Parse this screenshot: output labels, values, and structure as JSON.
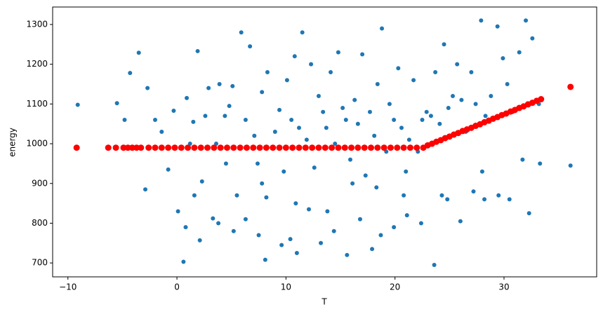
{
  "chart_data": {
    "type": "scatter",
    "xlabel": "T",
    "ylabel": "energy",
    "xlim": [
      -11.4,
      38.5
    ],
    "ylim": [
      665,
      1344
    ],
    "xticks": [
      {
        "value": -10,
        "label": "−10"
      },
      0,
      10,
      20,
      30
    ],
    "yticks": [
      700,
      800,
      900,
      1000,
      1100,
      1200,
      1300
    ],
    "series": [
      {
        "color": "#1f77b4",
        "size": 3,
        "x": [
          -9.1,
          -5.5,
          -4.8,
          -4.3,
          -3.5,
          -2.9,
          -2.7,
          -2.0,
          -1.4,
          -0.8,
          -0.3,
          0.1,
          0.6,
          0.9,
          1.2,
          1.5,
          1.9,
          2.3,
          2.6,
          2.9,
          3.3,
          3.6,
          3.9,
          4.4,
          4.8,
          5.1,
          5.5,
          5.9,
          6.3,
          6.7,
          7.1,
          7.4,
          7.8,
          8.1,
          8.3,
          8.7,
          9.0,
          9.4,
          9.8,
          10.1,
          10.5,
          10.8,
          11.2,
          11.5,
          11.9,
          12.3,
          12.6,
          13.0,
          13.4,
          13.7,
          14.1,
          14.5,
          14.8,
          15.2,
          15.5,
          15.9,
          16.3,
          16.6,
          17.0,
          17.3,
          17.7,
          18.1,
          18.4,
          18.8,
          19.2,
          19.5,
          19.9,
          20.3,
          20.6,
          21.0,
          21.3,
          21.7,
          22.1,
          22.5,
          22.9,
          23.3,
          23.7,
          24.1,
          24.5,
          24.9,
          25.3,
          25.7,
          26.1,
          26.5,
          27.0,
          27.4,
          27.9,
          28.3,
          28.8,
          29.4,
          29.9,
          30.3,
          30.8,
          31.4,
          32.0,
          32.6,
          33.2,
          36.1,
          0.8,
          2.1,
          3.8,
          5.2,
          6.3,
          7.5,
          8.2,
          9.6,
          10.4,
          11.0,
          12.1,
          13.2,
          14.4,
          15.6,
          16.8,
          17.9,
          18.7,
          19.9,
          21.1,
          22.4,
          23.6,
          24.8,
          26.0,
          27.2,
          28.2,
          29.5,
          30.5,
          32.3,
          33.3,
          1.6,
          4.5,
          7.8,
          10.9,
          13.8,
          16.1,
          18.3,
          20.8,
          24.3,
          28.0,
          31.7
        ],
        "values": [
          1098,
          1102,
          1060,
          1178,
          1229,
          885,
          1140,
          1060,
          1030,
          935,
          1083,
          830,
          703,
          1115,
          1000,
          1055,
          1233,
          905,
          1070,
          1140,
          812,
          1000,
          1150,
          1070,
          1095,
          1145,
          870,
          1280,
          1060,
          1245,
          1020,
          950,
          1130,
          708,
          1180,
          990,
          1030,
          1085,
          930,
          1160,
          1060,
          1220,
          1040,
          1280,
          1010,
          1200,
          940,
          1120,
          1080,
          1040,
          1180,
          1000,
          1230,
          1090,
          1060,
          960,
          1110,
          1050,
          1225,
          920,
          1080,
          1020,
          1150,
          1290,
          980,
          1100,
          1060,
          1190,
          1040,
          930,
          1010,
          1160,
          980,
          1060,
          1080,
          1070,
          1180,
          1050,
          1250,
          1090,
          1120,
          1200,
          1110,
          1030,
          1180,
          1100,
          1310,
          1070,
          1120,
          1295,
          1215,
          1150,
          1080,
          1230,
          1310,
          1265,
          1100,
          945,
          790,
          757,
          800,
          780,
          810,
          770,
          865,
          745,
          760,
          725,
          835,
          750,
          780,
          720,
          810,
          735,
          770,
          790,
          820,
          800,
          695,
          860,
          805,
          880,
          860,
          870,
          860,
          825,
          950,
          870,
          950,
          900,
          850,
          830,
          900,
          890,
          870,
          870,
          930,
          960
        ]
      },
      {
        "color": "#ff0000",
        "size": 4.5,
        "x": [
          -9.2,
          -6.3,
          -5.6,
          -4.9,
          -4.5,
          -4.1,
          -3.7,
          -3.3,
          -2.6,
          -2.0,
          -1.4,
          -0.8,
          -0.2,
          0.4,
          1.0,
          1.6,
          2.2,
          2.8,
          3.4,
          4.0,
          4.6,
          5.2,
          5.8,
          6.4,
          7.0,
          7.6,
          8.2,
          8.8,
          9.4,
          10.0,
          10.6,
          11.2,
          11.8,
          12.4,
          13.0,
          13.6,
          14.2,
          14.8,
          15.4,
          16.0,
          16.6,
          17.2,
          17.8,
          18.4,
          19.0,
          19.6,
          20.2,
          20.8,
          21.4,
          22.0,
          22.6,
          23.0,
          23.4,
          23.8,
          24.2,
          24.6,
          25.0,
          25.4,
          25.8,
          26.2,
          26.6,
          27.0,
          27.4,
          27.8,
          28.2,
          28.6,
          29.0,
          29.4,
          29.8,
          30.2,
          30.6,
          31.0,
          31.4,
          31.8,
          32.2,
          32.6,
          33.0,
          33.4,
          36.1
        ],
        "values": [
          990,
          990,
          990,
          990,
          990,
          990,
          990,
          990,
          990,
          990,
          990,
          990,
          990,
          990,
          990,
          990,
          990,
          990,
          990,
          990,
          990,
          990,
          990,
          990,
          990,
          990,
          990,
          990,
          990,
          990,
          990,
          990,
          990,
          990,
          990,
          990,
          990,
          990,
          990,
          990,
          990,
          990,
          990,
          990,
          990,
          990,
          990,
          990,
          990,
          990,
          990,
          996,
          1000,
          1005,
          1009,
          1014,
          1018,
          1023,
          1027,
          1032,
          1036,
          1040,
          1045,
          1049,
          1054,
          1058,
          1063,
          1067,
          1072,
          1076,
          1081,
          1085,
          1090,
          1094,
          1099,
          1103,
          1108,
          1112,
          1143
        ]
      }
    ]
  }
}
